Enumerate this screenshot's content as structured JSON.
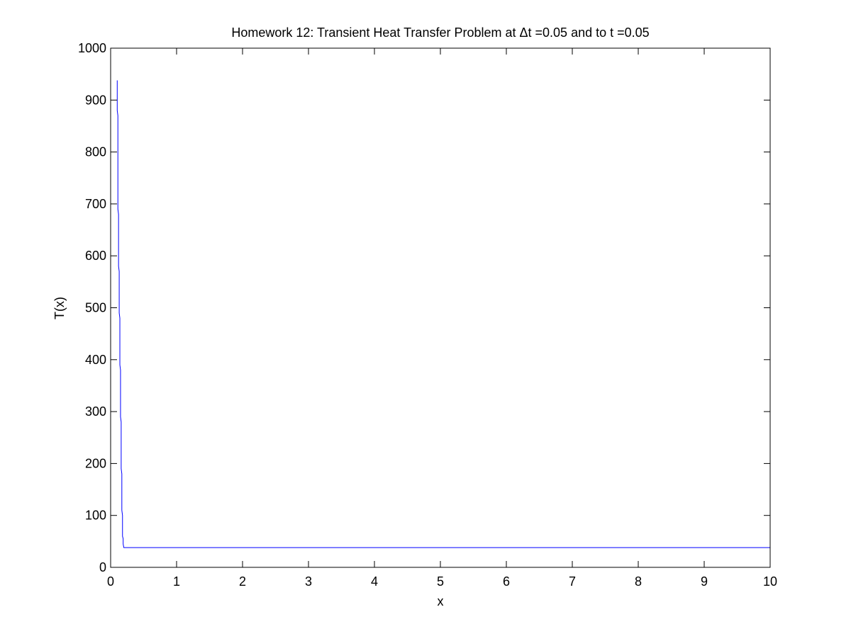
{
  "chart_data": {
    "type": "line",
    "title": "Homework 12: Transient Heat Transfer Problem at Δt =0.05 and to t =0.05",
    "xlabel": "x",
    "ylabel": "T(x)",
    "xlim": [
      0,
      10
    ],
    "ylim": [
      0,
      1000
    ],
    "xticks": [
      0,
      1,
      2,
      3,
      4,
      5,
      6,
      7,
      8,
      9,
      10
    ],
    "yticks": [
      0,
      100,
      200,
      300,
      400,
      500,
      600,
      700,
      800,
      900,
      1000
    ],
    "grid": false,
    "legend": "none",
    "series": [
      {
        "color": "#0000ff",
        "x": [
          0.1,
          0.1,
          0.11,
          0.11,
          0.12,
          0.12,
          0.13,
          0.13,
          0.14,
          0.14,
          0.15,
          0.15,
          0.16,
          0.16,
          0.17,
          0.17,
          0.18,
          0.18,
          0.19,
          0.19,
          0.2,
          0.2,
          10
        ],
        "y": [
          938,
          880,
          870,
          690,
          680,
          580,
          570,
          490,
          480,
          390,
          380,
          290,
          280,
          190,
          180,
          110,
          100,
          60,
          55,
          45,
          38,
          38,
          38
        ]
      }
    ]
  }
}
